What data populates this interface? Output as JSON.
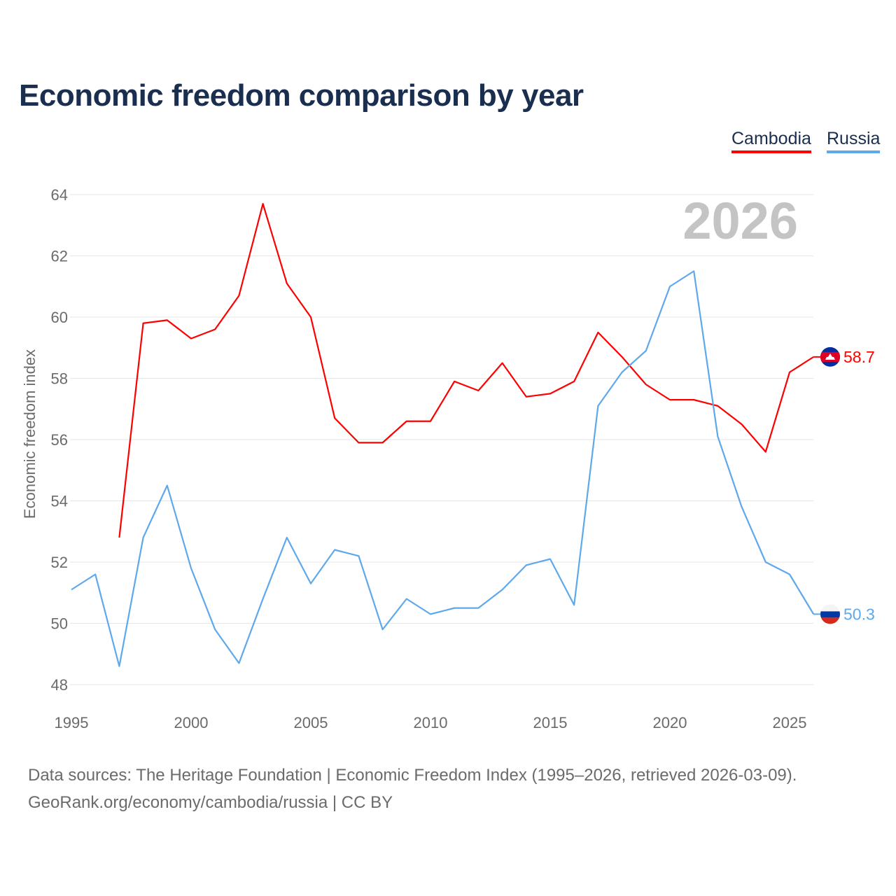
{
  "title": "Economic freedom comparison by year",
  "footer": {
    "line1": "Data sources: The Heritage Foundation | Economic Freedom Index (1995–2026, retrieved 2026-03-09).",
    "line2": "GeoRank.org/economy/cambodia/russia | CC BY"
  },
  "chart_data": {
    "type": "line",
    "title": "Economic freedom comparison by year",
    "xlabel": "",
    "ylabel": "Economic freedom index",
    "xlim": [
      1995,
      2026
    ],
    "ylim": [
      48,
      64
    ],
    "xticks": [
      "1995",
      "2000",
      "2005",
      "2010",
      "2015",
      "2020",
      "2025"
    ],
    "yticks": [
      "48",
      "50",
      "52",
      "54",
      "56",
      "58",
      "60",
      "62",
      "64"
    ],
    "year_watermark": "2026",
    "legend_position": "top-right",
    "grid": true,
    "series": [
      {
        "name": "Cambodia",
        "color": "#ff0000",
        "flag": "cambodia-flag",
        "end_label": "58.7",
        "x": [
          1997,
          1998,
          1999,
          2000,
          2001,
          2002,
          2003,
          2004,
          2005,
          2006,
          2007,
          2008,
          2009,
          2010,
          2011,
          2012,
          2013,
          2014,
          2015,
          2016,
          2017,
          2018,
          2019,
          2020,
          2021,
          2022,
          2023,
          2024,
          2025,
          2026
        ],
        "values": [
          52.8,
          59.8,
          59.9,
          59.3,
          59.6,
          60.7,
          63.7,
          61.1,
          60.0,
          56.7,
          55.9,
          55.9,
          56.6,
          56.6,
          57.9,
          57.6,
          58.5,
          57.4,
          57.5,
          57.9,
          59.5,
          58.7,
          57.8,
          57.3,
          57.3,
          57.1,
          56.5,
          55.6,
          58.2,
          58.7
        ]
      },
      {
        "name": "Russia",
        "color": "#5ea8ec",
        "flag": "russia-flag",
        "end_label": "50.3",
        "x": [
          1995,
          1996,
          1997,
          1998,
          1999,
          2000,
          2001,
          2002,
          2003,
          2004,
          2005,
          2006,
          2007,
          2008,
          2009,
          2010,
          2011,
          2012,
          2013,
          2014,
          2015,
          2016,
          2017,
          2018,
          2019,
          2020,
          2021,
          2022,
          2023,
          2024,
          2025,
          2026
        ],
        "values": [
          51.1,
          51.6,
          48.6,
          52.8,
          54.5,
          51.8,
          49.8,
          48.7,
          50.8,
          52.8,
          51.3,
          52.4,
          52.2,
          49.8,
          50.8,
          50.3,
          50.5,
          50.5,
          51.1,
          51.9,
          52.1,
          50.6,
          57.1,
          58.2,
          58.9,
          61.0,
          61.5,
          56.1,
          53.8,
          52.0,
          51.6,
          50.3
        ]
      }
    ]
  }
}
